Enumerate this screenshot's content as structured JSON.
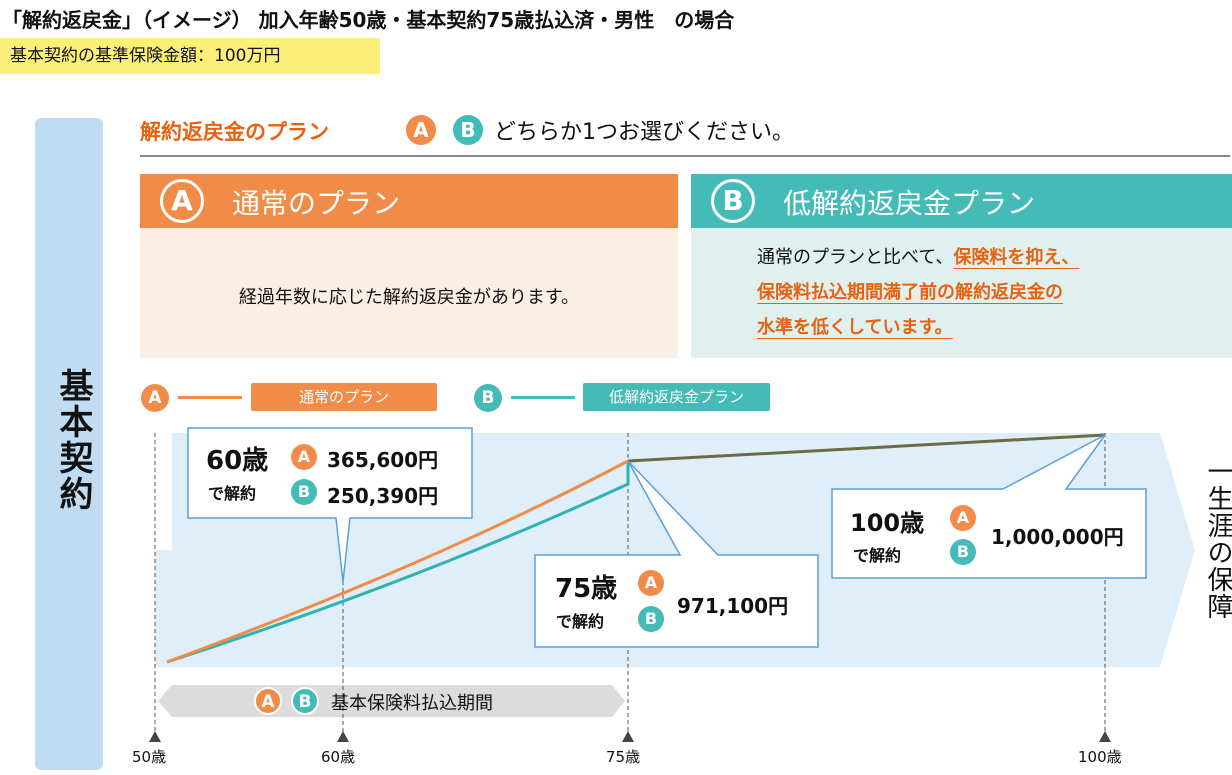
{
  "title": "「解約返戻金」（イメージ） 加入年齢50歳・基本契約75歳払込済・男性　の場合",
  "base_amount": "基本契約の基準保険金額：100万円",
  "side_label": "基本契約",
  "plan_heading": {
    "label": "解約返戻金のプラン",
    "a": "A",
    "b": "B",
    "instruction": "どちらか1つお選びください。"
  },
  "plan_a": {
    "badge": "A",
    "title": "通常のプラン",
    "description": "経過年数に応じた解約返戻金があります。"
  },
  "plan_b": {
    "badge": "B",
    "title": "低解約返戻金プラン",
    "line1_plain": "通常のプランと比べて、",
    "line1_hl": "保険料を抑え、",
    "line2_hl": "保険料払込期間満了前の解約返戻金の",
    "line3_hl": "水準を低くしています。"
  },
  "legend": [
    {
      "badge": "A",
      "label": "通常のプラン",
      "color": "#f08c48"
    },
    {
      "badge": "B",
      "label": "低解約返戻金プラン",
      "color": "#45bbb8"
    }
  ],
  "callouts": {
    "c60": {
      "age": "60歳",
      "suffix": "で解約",
      "a_value": "365,600円",
      "b_value": "250,390円"
    },
    "c75": {
      "age": "75歳",
      "suffix": "で解約",
      "value": "971,100円"
    },
    "c100": {
      "age": "100歳",
      "suffix": "で解約",
      "value": "1,000,000円"
    }
  },
  "payment_period": "基本保険料払込期間",
  "lifetime": "一生涯の保障",
  "axis": [
    "50歳",
    "60歳",
    "75歳",
    "100歳"
  ],
  "colors": {
    "orange": "#f08c48",
    "teal": "#45bbb8",
    "accent": "#e8620f"
  }
}
